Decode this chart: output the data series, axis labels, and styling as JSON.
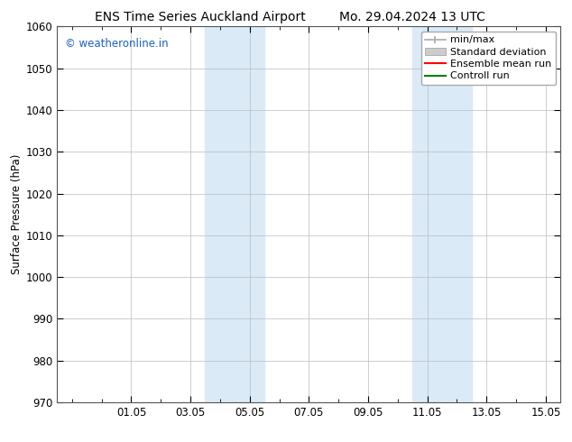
{
  "title_left": "ENS Time Series Auckland Airport",
  "title_right": "Mo. 29.04.2024 13 UTC",
  "ylabel": "Surface Pressure (hPa)",
  "ylim": [
    970,
    1060
  ],
  "yticks": [
    970,
    980,
    990,
    1000,
    1010,
    1020,
    1030,
    1040,
    1050,
    1060
  ],
  "xlim": [
    -0.5,
    16.5
  ],
  "xtick_labels": [
    "01.05",
    "03.05",
    "05.05",
    "07.05",
    "09.05",
    "11.05",
    "13.05",
    "15.05"
  ],
  "xtick_positions": [
    2,
    4,
    6,
    8,
    10,
    12,
    14,
    16
  ],
  "shaded_bands": [
    {
      "x_start": 4.5,
      "x_end": 5.5,
      "color": "#daeaf7"
    },
    {
      "x_start": 5.5,
      "x_end": 6.5,
      "color": "#daeaf7"
    },
    {
      "x_start": 11.5,
      "x_end": 12.5,
      "color": "#daeaf7"
    },
    {
      "x_start": 12.5,
      "x_end": 13.5,
      "color": "#daeaf7"
    }
  ],
  "watermark_text": "© weatheronline.in",
  "watermark_color": "#1a5fc8",
  "legend_items": [
    {
      "label": "min/max",
      "color": "#aaaaaa",
      "style": "line_with_cap"
    },
    {
      "label": "Standard deviation",
      "color": "#cccccc",
      "style": "filled_rect"
    },
    {
      "label": "Ensemble mean run",
      "color": "#ff0000",
      "style": "line"
    },
    {
      "label": "Controll run",
      "color": "#008000",
      "style": "line"
    }
  ],
  "bg_color": "#ffffff",
  "plot_bg_color": "#ffffff",
  "grid_color": "#bbbbbb",
  "spine_color": "#555555",
  "font_size": 8.5,
  "title_font_size": 10
}
